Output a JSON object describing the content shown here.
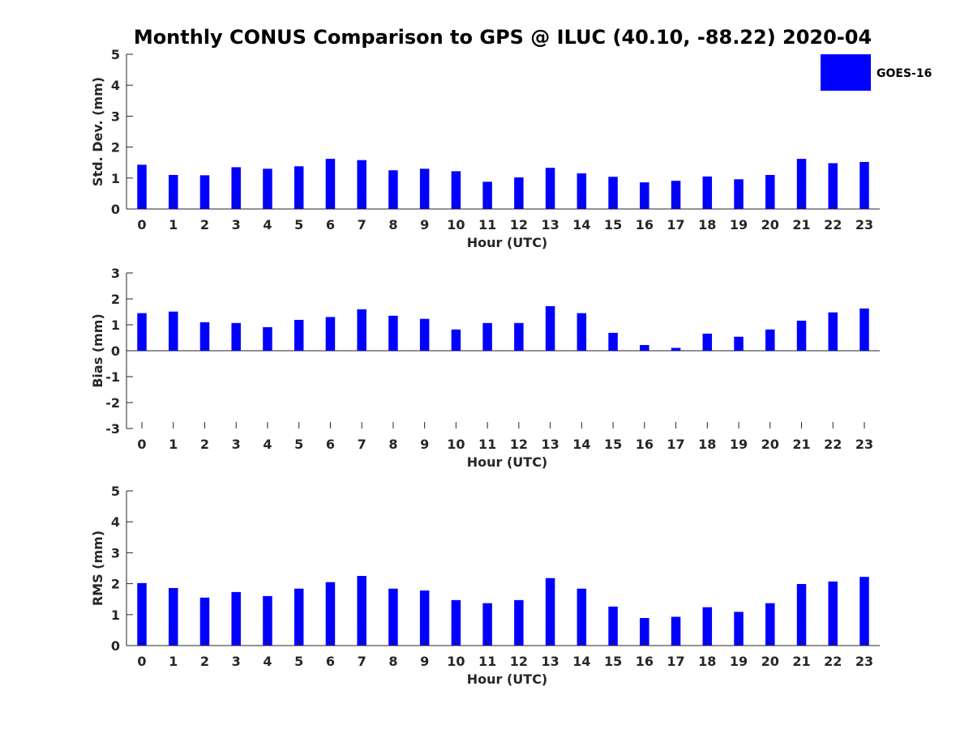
{
  "title": "Monthly CONUS Comparison to GPS @ ILUC (40.10, -88.22) 2020-04",
  "legend": {
    "label": "GOES-16",
    "placement": "top-right"
  },
  "colors": {
    "bar": "#0000ff",
    "axis": "#262626",
    "title": "#000000"
  },
  "chart_data": [
    {
      "type": "bar",
      "ylabel": "Std. Dev. (mm)",
      "xlabel": "Hour (UTC)",
      "ylim": [
        0,
        5
      ],
      "yticks": [
        "0",
        "1",
        "2",
        "3",
        "4",
        "5"
      ],
      "categories": [
        "0",
        "1",
        "2",
        "3",
        "4",
        "5",
        "6",
        "7",
        "8",
        "9",
        "10",
        "11",
        "12",
        "13",
        "14",
        "15",
        "16",
        "17",
        "18",
        "19",
        "20",
        "21",
        "22",
        "23"
      ],
      "series": [
        {
          "name": "GOES-16",
          "values": [
            1.43,
            1.1,
            1.09,
            1.35,
            1.3,
            1.38,
            1.62,
            1.58,
            1.25,
            1.3,
            1.22,
            0.88,
            1.02,
            1.33,
            1.15,
            1.04,
            0.86,
            0.91,
            1.05,
            0.96,
            1.1,
            1.62,
            1.48,
            1.52
          ]
        }
      ],
      "grid": false
    },
    {
      "type": "bar",
      "ylabel": "Bias (mm)",
      "xlabel": "Hour (UTC)",
      "ylim": [
        -3,
        3
      ],
      "yticks": [
        "-3",
        "-2",
        "-1",
        "0",
        "1",
        "2",
        "3"
      ],
      "categories": [
        "0",
        "1",
        "2",
        "3",
        "4",
        "5",
        "6",
        "7",
        "8",
        "9",
        "10",
        "11",
        "12",
        "13",
        "14",
        "15",
        "16",
        "17",
        "18",
        "19",
        "20",
        "21",
        "22",
        "23"
      ],
      "series": [
        {
          "name": "GOES-16",
          "values": [
            1.45,
            1.51,
            1.1,
            1.07,
            0.91,
            1.19,
            1.3,
            1.6,
            1.35,
            1.23,
            0.82,
            1.07,
            1.07,
            1.72,
            1.45,
            0.69,
            0.22,
            0.11,
            0.66,
            0.54,
            0.82,
            1.16,
            1.48,
            1.63
          ]
        }
      ],
      "grid": false
    },
    {
      "type": "bar",
      "ylabel": "RMS (mm)",
      "xlabel": "Hour (UTC)",
      "ylim": [
        0,
        5
      ],
      "yticks": [
        "0",
        "1",
        "2",
        "3",
        "4",
        "5"
      ],
      "categories": [
        "0",
        "1",
        "2",
        "3",
        "4",
        "5",
        "6",
        "7",
        "8",
        "9",
        "10",
        "11",
        "12",
        "13",
        "14",
        "15",
        "16",
        "17",
        "18",
        "19",
        "20",
        "21",
        "22",
        "23"
      ],
      "series": [
        {
          "name": "GOES-16",
          "values": [
            2.02,
            1.86,
            1.55,
            1.73,
            1.6,
            1.84,
            2.05,
            2.25,
            1.84,
            1.78,
            1.47,
            1.37,
            1.47,
            2.18,
            1.84,
            1.26,
            0.89,
            0.93,
            1.24,
            1.09,
            1.37,
            1.99,
            2.07,
            2.22
          ]
        }
      ],
      "grid": false
    }
  ]
}
